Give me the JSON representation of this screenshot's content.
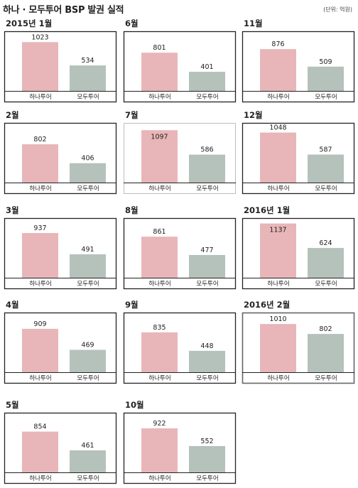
{
  "page": {
    "title": "하나 · 모두투어 BSP 발권 실적",
    "unit": "(단위: 억원)"
  },
  "chart_data": [
    {
      "type": "bar",
      "title": "2015년 1월",
      "categories": [
        "하나투어",
        "모두투어"
      ],
      "values": [
        1023,
        534
      ]
    },
    {
      "type": "bar",
      "title": "2월",
      "categories": [
        "하나투어",
        "모두투어"
      ],
      "values": [
        802,
        406
      ]
    },
    {
      "type": "bar",
      "title": "3월",
      "categories": [
        "하나투어",
        "모두투어"
      ],
      "values": [
        937,
        491
      ]
    },
    {
      "type": "bar",
      "title": "4월",
      "categories": [
        "하나투어",
        "모두투어"
      ],
      "values": [
        909,
        469
      ]
    },
    {
      "type": "bar",
      "title": "5월",
      "categories": [
        "하나투어",
        "모두투어"
      ],
      "values": [
        854,
        461
      ]
    },
    {
      "type": "bar",
      "title": "6월",
      "categories": [
        "하나투어",
        "모두투어"
      ],
      "values": [
        801,
        401
      ]
    },
    {
      "type": "bar",
      "title": "7월",
      "categories": [
        "하나투어",
        "모두투어"
      ],
      "values": [
        1097,
        586
      ]
    },
    {
      "type": "bar",
      "title": "8월",
      "categories": [
        "하나투어",
        "모두투어"
      ],
      "values": [
        861,
        477
      ]
    },
    {
      "type": "bar",
      "title": "9월",
      "categories": [
        "하나투어",
        "모두투어"
      ],
      "values": [
        835,
        448
      ]
    },
    {
      "type": "bar",
      "title": "10월",
      "categories": [
        "하나투어",
        "모두투어"
      ],
      "values": [
        922,
        552
      ]
    },
    {
      "type": "bar",
      "title": "11월",
      "categories": [
        "하나투어",
        "모두투어"
      ],
      "values": [
        876,
        509
      ]
    },
    {
      "type": "bar",
      "title": "12월",
      "categories": [
        "하나투어",
        "모두투어"
      ],
      "values": [
        1048,
        587
      ]
    },
    {
      "type": "bar",
      "title": "2016년 1월",
      "categories": [
        "하나투어",
        "모두투어"
      ],
      "values": [
        1137,
        624
      ]
    },
    {
      "type": "bar",
      "title": "2016년 2월",
      "categories": [
        "하나투어",
        "모두투어"
      ],
      "values": [
        1010,
        802
      ]
    }
  ],
  "colors": {
    "hana": "#e8b6b8",
    "modu": "#b5c2bb"
  }
}
